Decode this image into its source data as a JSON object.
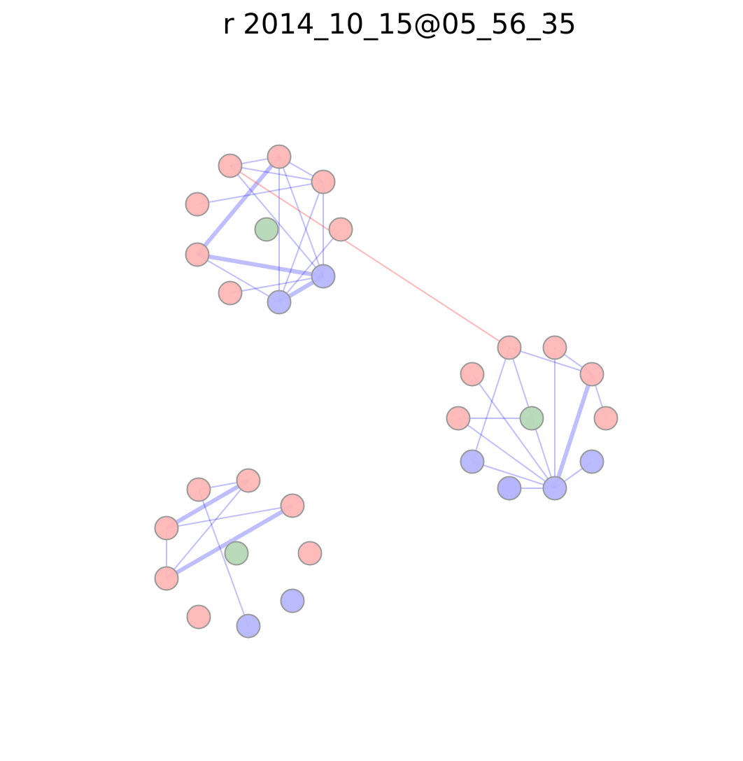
{
  "title": "r 2014_10_15@05_56_35",
  "colors": {
    "node_red": "#ffb6b6",
    "node_blue": "#b6b6ff",
    "node_green": "#b6d9b6",
    "node_stroke": "#999999",
    "edge_blue": "#0000ff",
    "edge_red": "#ff3333"
  },
  "graph": {
    "nodes": [
      {
        "id": "a1",
        "type": "red"
      },
      {
        "id": "a2",
        "type": "red"
      },
      {
        "id": "a3",
        "type": "red"
      },
      {
        "id": "a4",
        "type": "red"
      },
      {
        "id": "a5",
        "type": "green"
      },
      {
        "id": "a6",
        "type": "red"
      },
      {
        "id": "a7",
        "type": "red"
      },
      {
        "id": "a8",
        "type": "blue"
      },
      {
        "id": "a9",
        "type": "red"
      },
      {
        "id": "a10",
        "type": "blue"
      },
      {
        "id": "b1",
        "type": "red"
      },
      {
        "id": "b2",
        "type": "red"
      },
      {
        "id": "b3",
        "type": "red"
      },
      {
        "id": "b4",
        "type": "red"
      },
      {
        "id": "b5",
        "type": "green"
      },
      {
        "id": "b6",
        "type": "red"
      },
      {
        "id": "b7",
        "type": "red"
      },
      {
        "id": "b8",
        "type": "blue"
      },
      {
        "id": "b9",
        "type": "blue"
      },
      {
        "id": "b10",
        "type": "blue"
      },
      {
        "id": "c1",
        "type": "red"
      },
      {
        "id": "c2",
        "type": "red"
      },
      {
        "id": "c3",
        "type": "red"
      },
      {
        "id": "c4",
        "type": "red"
      },
      {
        "id": "c5",
        "type": "green"
      },
      {
        "id": "c6",
        "type": "red"
      },
      {
        "id": "c7",
        "type": "red"
      },
      {
        "id": "c8",
        "type": "blue"
      },
      {
        "id": "c9",
        "type": "red"
      },
      {
        "id": "c10",
        "type": "blue"
      }
    ],
    "edges": [
      {
        "source": "a1",
        "target": "a2",
        "weight": 1,
        "color": "blue"
      },
      {
        "source": "a1",
        "target": "a3",
        "weight": 1,
        "color": "blue"
      },
      {
        "source": "a1",
        "target": "a8",
        "weight": 1,
        "color": "blue"
      },
      {
        "source": "a2",
        "target": "a3",
        "weight": 1,
        "color": "blue"
      },
      {
        "source": "a2",
        "target": "a6",
        "weight": 3,
        "color": "blue"
      },
      {
        "source": "a2",
        "target": "a10",
        "weight": 1,
        "color": "blue"
      },
      {
        "source": "a2",
        "target": "a8",
        "weight": 1,
        "color": "blue"
      },
      {
        "source": "a4",
        "target": "a3",
        "weight": 1,
        "color": "blue"
      },
      {
        "source": "a3",
        "target": "a8",
        "weight": 1,
        "color": "blue"
      },
      {
        "source": "a3",
        "target": "a10",
        "weight": 1,
        "color": "blue"
      },
      {
        "source": "a6",
        "target": "a8",
        "weight": 3,
        "color": "blue"
      },
      {
        "source": "a6",
        "target": "a10",
        "weight": 1,
        "color": "blue"
      },
      {
        "source": "a9",
        "target": "a8",
        "weight": 1,
        "color": "blue"
      },
      {
        "source": "a10",
        "target": "a8",
        "weight": 3,
        "color": "blue"
      },
      {
        "source": "a7",
        "target": "a10",
        "weight": 1,
        "color": "blue"
      },
      {
        "source": "a1",
        "target": "b1",
        "weight": 1,
        "color": "red"
      },
      {
        "source": "b1",
        "target": "b3",
        "weight": 1,
        "color": "blue"
      },
      {
        "source": "b1",
        "target": "b9",
        "weight": 1,
        "color": "blue"
      },
      {
        "source": "b1",
        "target": "b8",
        "weight": 1,
        "color": "blue"
      },
      {
        "source": "b2",
        "target": "b3",
        "weight": 1,
        "color": "blue"
      },
      {
        "source": "b2",
        "target": "b9",
        "weight": 1,
        "color": "blue"
      },
      {
        "source": "b3",
        "target": "b9",
        "weight": 3,
        "color": "blue"
      },
      {
        "source": "b7",
        "target": "b3",
        "weight": 1,
        "color": "blue"
      },
      {
        "source": "b6",
        "target": "b9",
        "weight": 1,
        "color": "blue"
      },
      {
        "source": "b4",
        "target": "b9",
        "weight": 1,
        "color": "blue"
      },
      {
        "source": "b6",
        "target": "b5",
        "weight": 1,
        "color": "blue"
      },
      {
        "source": "b8",
        "target": "b9",
        "weight": 1,
        "color": "blue"
      },
      {
        "source": "b10",
        "target": "b9",
        "weight": 1,
        "color": "blue"
      },
      {
        "source": "c1",
        "target": "c2",
        "weight": 3,
        "color": "blue"
      },
      {
        "source": "c1",
        "target": "c3",
        "weight": 1,
        "color": "blue"
      },
      {
        "source": "c2",
        "target": "c4",
        "weight": 1,
        "color": "blue"
      },
      {
        "source": "c2",
        "target": "c6",
        "weight": 1,
        "color": "blue"
      },
      {
        "source": "c4",
        "target": "c8",
        "weight": 1,
        "color": "blue"
      },
      {
        "source": "c3",
        "target": "c6",
        "weight": 3,
        "color": "blue"
      },
      {
        "source": "c1",
        "target": "c6",
        "weight": 1,
        "color": "blue"
      }
    ]
  }
}
